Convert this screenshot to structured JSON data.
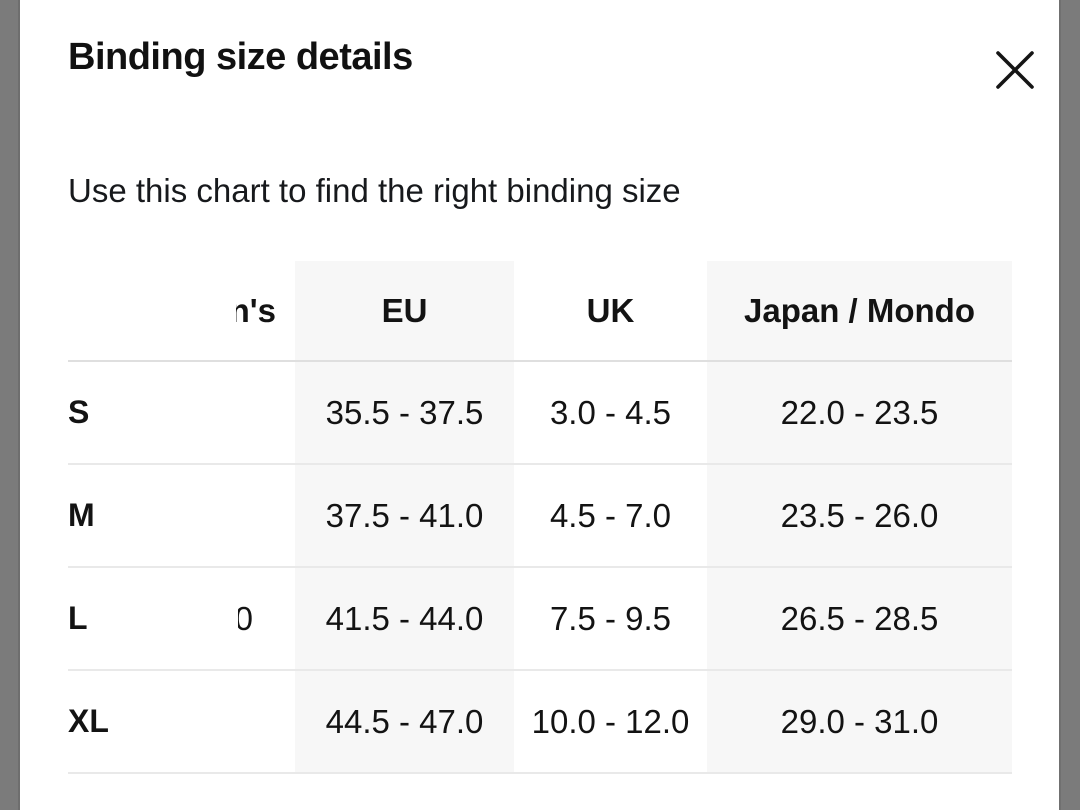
{
  "modal": {
    "title": "Binding size details",
    "subtitle": "Use this chart to find the right binding size"
  },
  "close": {
    "icon": "close-x"
  },
  "table": {
    "columns": [
      {
        "key": "size",
        "label": ""
      },
      {
        "key": "partial",
        "label": "n's"
      },
      {
        "key": "eu",
        "label": "EU"
      },
      {
        "key": "uk",
        "label": "UK"
      },
      {
        "key": "japan",
        "label": "Japan / Mondo"
      }
    ],
    "rows": [
      {
        "size": "S",
        "partial": "",
        "eu": "35.5 - 37.5",
        "uk": "3.0 - 4.5",
        "japan": "22.0 - 23.5"
      },
      {
        "size": "M",
        "partial": "",
        "eu": "37.5 - 41.0",
        "uk": "4.5 - 7.0",
        "japan": "23.5 - 26.0"
      },
      {
        "size": "L",
        "partial": "0",
        "eu": "41.5 - 44.0",
        "uk": "7.5 - 9.5",
        "japan": "26.5 - 28.5"
      },
      {
        "size": "XL",
        "partial": "",
        "eu": "44.5 - 47.0",
        "uk": "10.0 - 12.0",
        "japan": "29.0 - 31.0"
      }
    ]
  },
  "colors": {
    "backdrop": "#7b7b7b",
    "stripe": "#f7f7f7",
    "row_border": "#e9e9e9",
    "header_border": "#dfdfdf",
    "text": "#131313"
  }
}
